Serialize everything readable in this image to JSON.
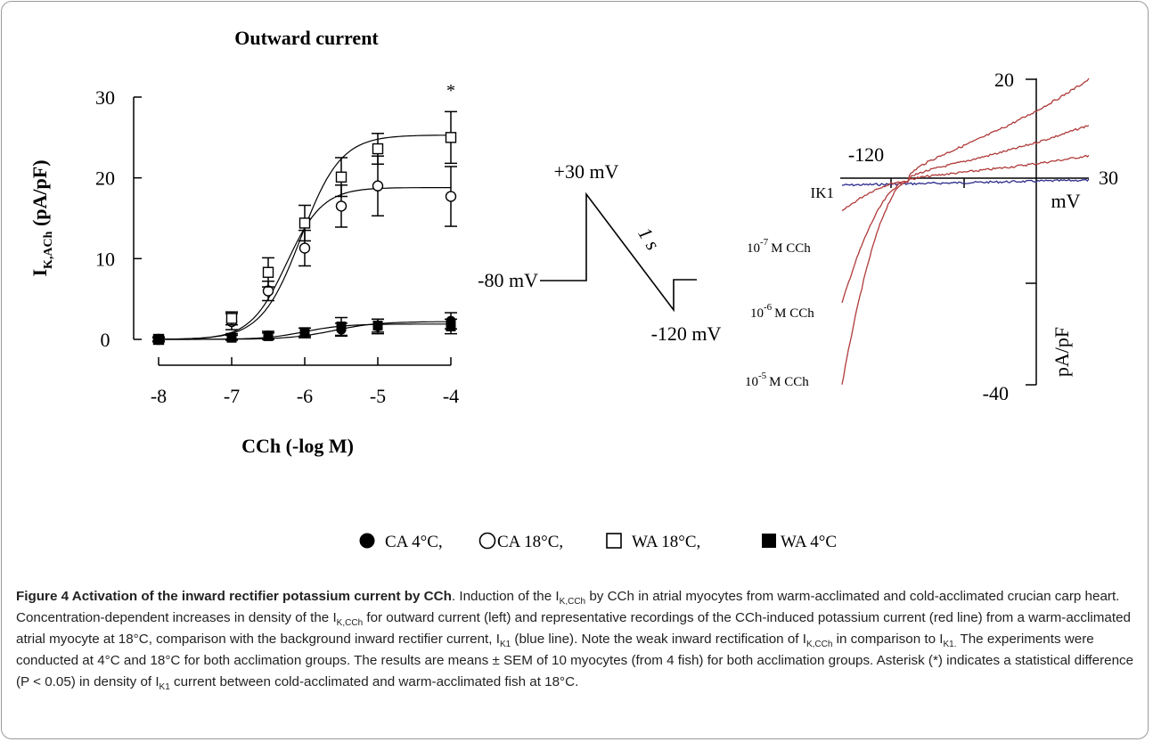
{
  "chart_data": [
    {
      "type": "scatter",
      "title": "Outward current",
      "ylabel": "I_K,ACh (pA/pF)",
      "xlabel": "CCh (-log M)",
      "xlim": [
        -8,
        -4
      ],
      "ylim": [
        0,
        30
      ],
      "xticks": [
        "-8",
        "-7",
        "-6",
        "-5",
        "-4"
      ],
      "yticks": [
        "0",
        "10",
        "20",
        "30"
      ],
      "annotation": "*",
      "series": [
        {
          "name": "CA 4°C",
          "marker": "filled-circle",
          "x": [
            -8,
            -7,
            -6.5,
            -6,
            -5.5,
            -5,
            -4
          ],
          "y": [
            0,
            0.3,
            0.5,
            0.8,
            1.2,
            1.6,
            2.3
          ],
          "err": [
            0.2,
            0.4,
            0.5,
            0.6,
            0.8,
            0.9,
            1.0
          ]
        },
        {
          "name": "CA 18°C",
          "marker": "open-circle",
          "x": [
            -8,
            -7,
            -6.5,
            -6,
            -5.5,
            -5,
            -4
          ],
          "y": [
            0,
            2.2,
            6.0,
            11.3,
            16.5,
            19.0,
            17.7
          ],
          "err": [
            0.3,
            1.0,
            1.2,
            2.2,
            2.6,
            3.7,
            3.7
          ]
        },
        {
          "name": "WA 18°C",
          "marker": "open-square",
          "x": [
            -8,
            -7,
            -6.5,
            -6,
            -5.5,
            -5,
            -4
          ],
          "y": [
            0,
            2.6,
            8.3,
            14.4,
            20.1,
            23.6,
            25.0
          ],
          "err": [
            0.3,
            0.8,
            1.8,
            2.2,
            2.4,
            1.9,
            3.2
          ]
        },
        {
          "name": "WA 4°C",
          "marker": "filled-square",
          "x": [
            -8,
            -7,
            -6.5,
            -6,
            -5.5,
            -5,
            -4
          ],
          "y": [
            0,
            0.2,
            0.4,
            0.9,
            1.6,
            1.7,
            1.6
          ],
          "err": [
            0.2,
            0.3,
            0.4,
            0.5,
            1.1,
            0.8,
            0.9
          ]
        }
      ]
    },
    {
      "type": "line",
      "description_labels": {
        "ylabel": "pA/pF",
        "xlabel": "mV"
      },
      "xlim": [
        -120,
        30
      ],
      "ylim": [
        -40,
        20
      ],
      "series": [
        {
          "name": "IK1",
          "color": "#2b2b8c",
          "x": [
            -120,
            30
          ],
          "y": [
            -0.8,
            0.2
          ]
        },
        {
          "name": "10-7 M CCh",
          "color": "#b03a3a",
          "x": [
            -120,
            -80,
            30
          ],
          "y": [
            -6,
            0,
            5
          ]
        },
        {
          "name": "10-6 M CCh",
          "color": "#b03a3a",
          "x": [
            -120,
            -80,
            30
          ],
          "y": [
            -24,
            0,
            11
          ]
        },
        {
          "name": "10-5 M CCh",
          "color": "#b03a3a",
          "x": [
            -120,
            -80,
            30
          ],
          "y": [
            -40,
            0,
            20
          ]
        }
      ]
    }
  ],
  "left_chart": {
    "title": "Outward current",
    "ylabel_main": "I",
    "ylabel_sub": "K,ACh",
    "ylabel_rest": " (pA/pF)",
    "xlabel": "CCh (-log M)",
    "xticks": [
      "-8",
      "-7",
      "-6",
      "-5",
      "-4"
    ],
    "yticks": [
      "0",
      "10",
      "20",
      "30"
    ],
    "star": "*"
  },
  "protocol": {
    "top_label": "+30 mV",
    "holding_label": "-80 mV",
    "bottom_label": "-120 mV",
    "duration_label": "1 s"
  },
  "right_chart": {
    "y_top": "20",
    "y_bottom": "-40",
    "x_left": "-120",
    "x_right": "30",
    "x_unit": "mV",
    "y_unit": "pA/pF",
    "label_ik1": "IK1",
    "labels_ccH": [
      {
        "base": "10",
        "exp": "-7",
        "rest": "M CCh"
      },
      {
        "base": "10",
        "exp": "-6",
        "rest": "M CCh"
      },
      {
        "base": "10",
        "exp": "-5",
        "rest": "M CCh"
      }
    ]
  },
  "legend": [
    {
      "label": "CA 4°C,",
      "marker": "filled-circle"
    },
    {
      "label": "CA 18°C,",
      "marker": "open-circle"
    },
    {
      "label": "WA 18°C,",
      "marker": "open-square"
    },
    {
      "label": "WA 4°C",
      "marker": "filled-square"
    }
  ],
  "caption": {
    "label": "Figure 4 Activation of the inward rectifier potassium current by CCh",
    "lines": [
      ". Induction of the I",
      "K,CCh",
      " by CCh in atrial myocytes from warm-acclimated and cold-acclimated crucian carp heart. Concentration-dependent increases in density of the I",
      "K,CCh",
      " for outward current (left) and representative recordings of the CCh-induced potassium current (red line) from a warm-acclimated atrial myocyte at 18°C, comparison with the background inward rectifier current, I",
      "K1",
      " (blue line). Note the weak inward rectification of I",
      "K,CCh",
      " in comparison to I",
      "K1.",
      " The experiments were conducted at 4°C and 18°C for both acclimation groups. The results are means ± SEM of 10 myocytes (from 4 fish) for both acclimation groups. Asterisk (*) indicates a statistical difference (P < 0.05) in density of I",
      "K1",
      " current between cold-acclimated and warm-acclimated fish at 18°C."
    ]
  }
}
